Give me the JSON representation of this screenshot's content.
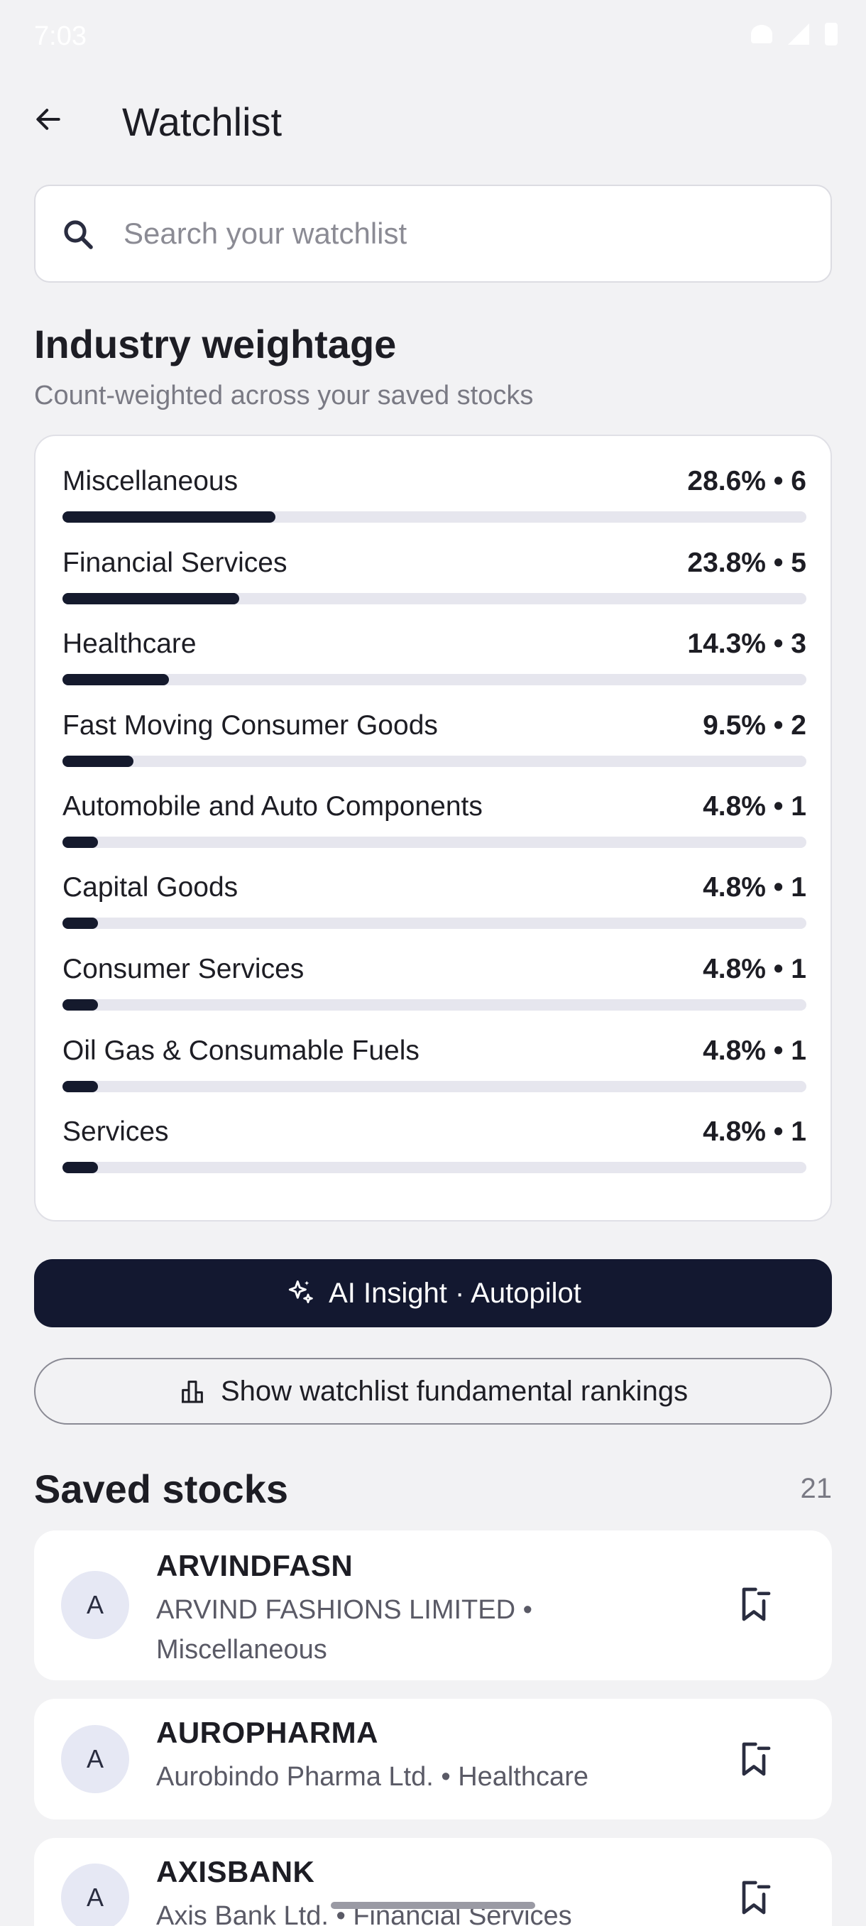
{
  "status_bar": {
    "time": "7:03"
  },
  "header": {
    "title": "Watchlist"
  },
  "search": {
    "placeholder": "Search your watchlist",
    "value": ""
  },
  "industry_weightage": {
    "title": "Industry weightage",
    "subtitle": "Count-weighted across your saved stocks",
    "items": [
      {
        "name": "Miscellaneous",
        "value": "28.6% • 6",
        "fraction": 0.286
      },
      {
        "name": "Financial Services",
        "value": "23.8% • 5",
        "fraction": 0.238
      },
      {
        "name": "Healthcare",
        "value": "14.3% • 3",
        "fraction": 0.143
      },
      {
        "name": "Fast Moving Consumer Goods",
        "value": "9.5% • 2",
        "fraction": 0.095
      },
      {
        "name": "Automobile and Auto Components",
        "value": "4.8% • 1",
        "fraction": 0.048
      },
      {
        "name": "Capital Goods",
        "value": "4.8% • 1",
        "fraction": 0.048
      },
      {
        "name": "Consumer Services",
        "value": "4.8% • 1",
        "fraction": 0.048
      },
      {
        "name": "Oil Gas & Consumable Fuels",
        "value": "4.8% • 1",
        "fraction": 0.048
      },
      {
        "name": "Services",
        "value": "4.8% • 1",
        "fraction": 0.048
      }
    ]
  },
  "actions": {
    "ai_insight_label": "AI Insight · Autopilot",
    "rankings_label": "Show watchlist fundamental rankings"
  },
  "saved_stocks": {
    "title": "Saved stocks",
    "count": "21",
    "items": [
      {
        "avatar": "A",
        "symbol": "ARVINDFASN",
        "description": "ARVIND FASHIONS LIMITED • Miscellaneous"
      },
      {
        "avatar": "A",
        "symbol": "AUROPHARMA",
        "description": "Aurobindo Pharma Ltd. • Healthcare"
      },
      {
        "avatar": "A",
        "symbol": "AXISBANK",
        "description": "Axis Bank Ltd. • Financial Services"
      }
    ]
  }
}
